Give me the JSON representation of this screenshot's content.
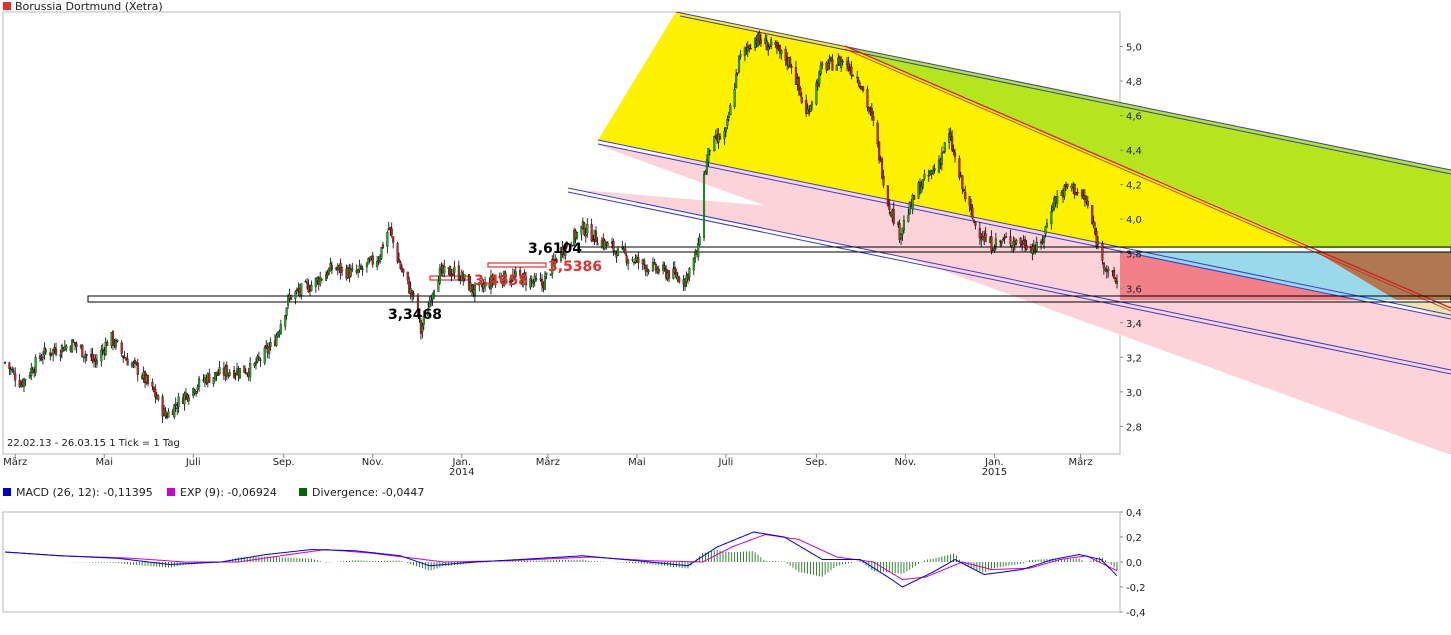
{
  "title": "Borussia Dortmund (Xetra)",
  "colors": {
    "title_square": "#e03030",
    "macd": "#0000cc",
    "exp": "#cc00cc",
    "divergence": "#006600"
  },
  "chart_data": [
    {
      "type": "candlestick",
      "title": "Borussia Dortmund (Xetra)",
      "date_range_label": "22.02.13 - 26.03.15",
      "tick_label": "1 Tick = 1 Tag",
      "ylim": [
        2.64,
        5.2
      ],
      "y_ticks": [
        "2,8",
        "3,0",
        "3,2",
        "3,4",
        "3,6",
        "3,8",
        "4,0",
        "4,2",
        "4,4",
        "4,6",
        "4,8",
        "5,0"
      ],
      "x_ticks": [
        {
          "label": "März",
          "year": ""
        },
        {
          "label": "Mai",
          "year": ""
        },
        {
          "label": "Juli",
          "year": ""
        },
        {
          "label": "Sep.",
          "year": ""
        },
        {
          "label": "Nov.",
          "year": ""
        },
        {
          "label": "Jan.",
          "year": "2014"
        },
        {
          "label": "März",
          "year": ""
        },
        {
          "label": "Mai",
          "year": ""
        },
        {
          "label": "Juli",
          "year": ""
        },
        {
          "label": "Sep.",
          "year": ""
        },
        {
          "label": "Nov.",
          "year": ""
        },
        {
          "label": "Jan.",
          "year": "2015"
        },
        {
          "label": "März",
          "year": ""
        }
      ],
      "price_path_points": [
        [
          "2013-02-22",
          3.17
        ],
        [
          "2013-03-05",
          3.05
        ],
        [
          "2013-03-20",
          3.22
        ],
        [
          "2013-04-10",
          3.28
        ],
        [
          "2013-04-25",
          3.17
        ],
        [
          "2013-05-05",
          3.32
        ],
        [
          "2013-05-15",
          3.2
        ],
        [
          "2013-05-25",
          3.12
        ],
        [
          "2013-06-05",
          2.98
        ],
        [
          "2013-06-12",
          2.86
        ],
        [
          "2013-06-25",
          2.98
        ],
        [
          "2013-07-10",
          3.08
        ],
        [
          "2013-07-25",
          3.12
        ],
        [
          "2013-08-10",
          3.13
        ],
        [
          "2013-08-25",
          3.28
        ],
        [
          "2013-09-05",
          3.55
        ],
        [
          "2013-09-20",
          3.62
        ],
        [
          "2013-10-05",
          3.72
        ],
        [
          "2013-10-20",
          3.68
        ],
        [
          "2013-11-05",
          3.78
        ],
        [
          "2013-11-12",
          3.95
        ],
        [
          "2013-11-20",
          3.72
        ],
        [
          "2013-12-01",
          3.5
        ],
        [
          "2013-12-04",
          3.35
        ],
        [
          "2013-12-15",
          3.68
        ],
        [
          "2013-12-28",
          3.7
        ],
        [
          "2014-01-10",
          3.58
        ],
        [
          "2014-01-25",
          3.66
        ],
        [
          "2014-02-10",
          3.66
        ],
        [
          "2014-02-25",
          3.62
        ],
        [
          "2014-03-10",
          3.82
        ],
        [
          "2014-03-25",
          3.95
        ],
        [
          "2014-04-10",
          3.85
        ],
        [
          "2014-04-25",
          3.78
        ],
        [
          "2014-05-10",
          3.72
        ],
        [
          "2014-05-25",
          3.68
        ],
        [
          "2014-06-03",
          3.65
        ],
        [
          "2014-06-12",
          3.82
        ],
        [
          "2014-06-16",
          4.25
        ],
        [
          "2014-06-20",
          4.42
        ],
        [
          "2014-07-01",
          4.5
        ],
        [
          "2014-07-10",
          4.92
        ],
        [
          "2014-07-20",
          5.05
        ],
        [
          "2014-08-01",
          5.0
        ],
        [
          "2014-08-15",
          4.9
        ],
        [
          "2014-08-25",
          4.6
        ],
        [
          "2014-09-05",
          4.88
        ],
        [
          "2014-09-20",
          4.92
        ],
        [
          "2014-10-01",
          4.8
        ],
        [
          "2014-10-10",
          4.55
        ],
        [
          "2014-10-20",
          4.1
        ],
        [
          "2014-10-28",
          3.92
        ],
        [
          "2014-11-10",
          4.18
        ],
        [
          "2014-11-22",
          4.3
        ],
        [
          "2014-12-01",
          4.48
        ],
        [
          "2014-12-10",
          4.18
        ],
        [
          "2014-12-18",
          3.98
        ],
        [
          "2014-12-28",
          3.85
        ],
        [
          "2015-01-10",
          3.88
        ],
        [
          "2015-01-22",
          3.86
        ],
        [
          "2015-02-01",
          3.82
        ],
        [
          "2015-02-10",
          4.1
        ],
        [
          "2015-02-22",
          4.2
        ],
        [
          "2015-03-05",
          4.1
        ],
        [
          "2015-03-12",
          3.88
        ],
        [
          "2015-03-20",
          3.68
        ],
        [
          "2015-03-26",
          3.64
        ]
      ],
      "annotations": [
        {
          "label": "3,6104",
          "color": "#000000"
        },
        {
          "label": "3,4658",
          "color": "#e03030"
        },
        {
          "label": "3,5386",
          "color": "#e03030"
        },
        {
          "label": "3,3468",
          "color": "#000000"
        }
      ]
    },
    {
      "type": "line",
      "ylim": [
        -0.4,
        0.4
      ],
      "y_ticks": [
        "0,4",
        "0,2",
        "0,0",
        "-0,2",
        "-0,4"
      ],
      "legend": [
        {
          "label": "MACD (26, 12): -0,11395",
          "color": "#0000cc"
        },
        {
          "label": "EXP (9): -0,06924",
          "color": "#cc00cc"
        },
        {
          "label": "Divergence: -0,0447",
          "color": "#006600"
        }
      ],
      "macd_path_points": [
        [
          "2013-02-22",
          0.08
        ],
        [
          "2013-04-01",
          0.05
        ],
        [
          "2013-05-10",
          0.03
        ],
        [
          "2013-06-15",
          -0.02
        ],
        [
          "2013-07-20",
          0.0
        ],
        [
          "2013-08-20",
          0.06
        ],
        [
          "2013-09-20",
          0.1
        ],
        [
          "2013-10-20",
          0.09
        ],
        [
          "2013-11-20",
          0.05
        ],
        [
          "2013-12-10",
          -0.03
        ],
        [
          "2014-01-10",
          0.0
        ],
        [
          "2014-02-10",
          0.02
        ],
        [
          "2014-03-25",
          0.05
        ],
        [
          "2014-05-01",
          0.01
        ],
        [
          "2014-06-05",
          -0.03
        ],
        [
          "2014-06-25",
          0.12
        ],
        [
          "2014-07-20",
          0.24
        ],
        [
          "2014-08-10",
          0.2
        ],
        [
          "2014-09-05",
          0.02
        ],
        [
          "2014-10-01",
          0.02
        ],
        [
          "2014-10-20",
          -0.12
        ],
        [
          "2014-10-30",
          -0.2
        ],
        [
          "2014-11-20",
          -0.08
        ],
        [
          "2014-12-05",
          0.02
        ],
        [
          "2014-12-25",
          -0.1
        ],
        [
          "2015-01-20",
          -0.06
        ],
        [
          "2015-02-10",
          0.02
        ],
        [
          "2015-02-28",
          0.06
        ],
        [
          "2015-03-15",
          0.02
        ],
        [
          "2015-03-26",
          -0.11
        ]
      ],
      "exp_path_points": [
        [
          "2013-02-22",
          0.08
        ],
        [
          "2013-04-01",
          0.05
        ],
        [
          "2013-05-20",
          0.03
        ],
        [
          "2013-06-25",
          0.0
        ],
        [
          "2013-08-01",
          0.0
        ],
        [
          "2013-08-30",
          0.05
        ],
        [
          "2013-09-30",
          0.1
        ],
        [
          "2013-11-01",
          0.07
        ],
        [
          "2013-12-20",
          0.0
        ],
        [
          "2014-02-01",
          0.01
        ],
        [
          "2014-03-30",
          0.04
        ],
        [
          "2014-05-10",
          0.01
        ],
        [
          "2014-06-15",
          0.0
        ],
        [
          "2014-07-05",
          0.12
        ],
        [
          "2014-07-28",
          0.22
        ],
        [
          "2014-08-20",
          0.18
        ],
        [
          "2014-09-15",
          0.04
        ],
        [
          "2014-10-10",
          0.0
        ],
        [
          "2014-10-30",
          -0.14
        ],
        [
          "2014-11-15",
          -0.12
        ],
        [
          "2014-12-10",
          0.0
        ],
        [
          "2014-12-30",
          -0.06
        ],
        [
          "2015-01-25",
          -0.05
        ],
        [
          "2015-02-15",
          0.02
        ],
        [
          "2015-03-05",
          0.05
        ],
        [
          "2015-03-26",
          -0.07
        ]
      ]
    }
  ]
}
